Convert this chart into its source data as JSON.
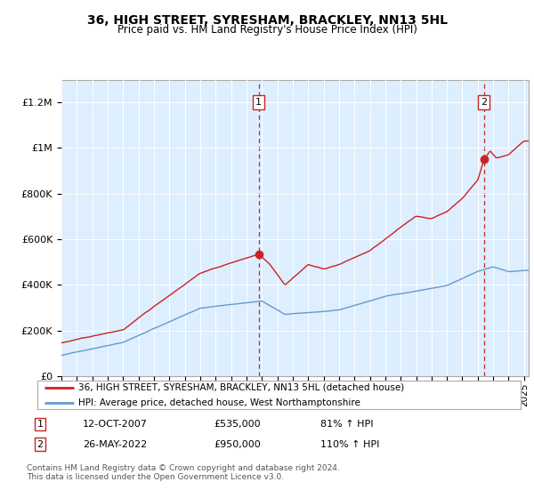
{
  "title": "36, HIGH STREET, SYRESHAM, BRACKLEY, NN13 5HL",
  "subtitle": "Price paid vs. HM Land Registry's House Price Index (HPI)",
  "legend_line1": "36, HIGH STREET, SYRESHAM, BRACKLEY, NN13 5HL (detached house)",
  "legend_line2": "HPI: Average price, detached house, West Northamptonshire",
  "footnote": "Contains HM Land Registry data © Crown copyright and database right 2024.\nThis data is licensed under the Open Government Licence v3.0.",
  "sale1_date": "12-OCT-2007",
  "sale1_price": "£535,000",
  "sale1_hpi": "81% ↑ HPI",
  "sale1_year": 2007.79,
  "sale1_value": 535000,
  "sale2_date": "26-MAY-2022",
  "sale2_price": "£950,000",
  "sale2_hpi": "110% ↑ HPI",
  "sale2_year": 2022.39,
  "sale2_value": 950000,
  "red_color": "#cc2222",
  "blue_color": "#6699cc",
  "bg_color": "#ddeeff",
  "grid_color": "#ffffff",
  "border_color": "#aaaaaa",
  "ylim": [
    0,
    1300000
  ],
  "xlim_start": 1995.0,
  "xlim_end": 2025.3
}
